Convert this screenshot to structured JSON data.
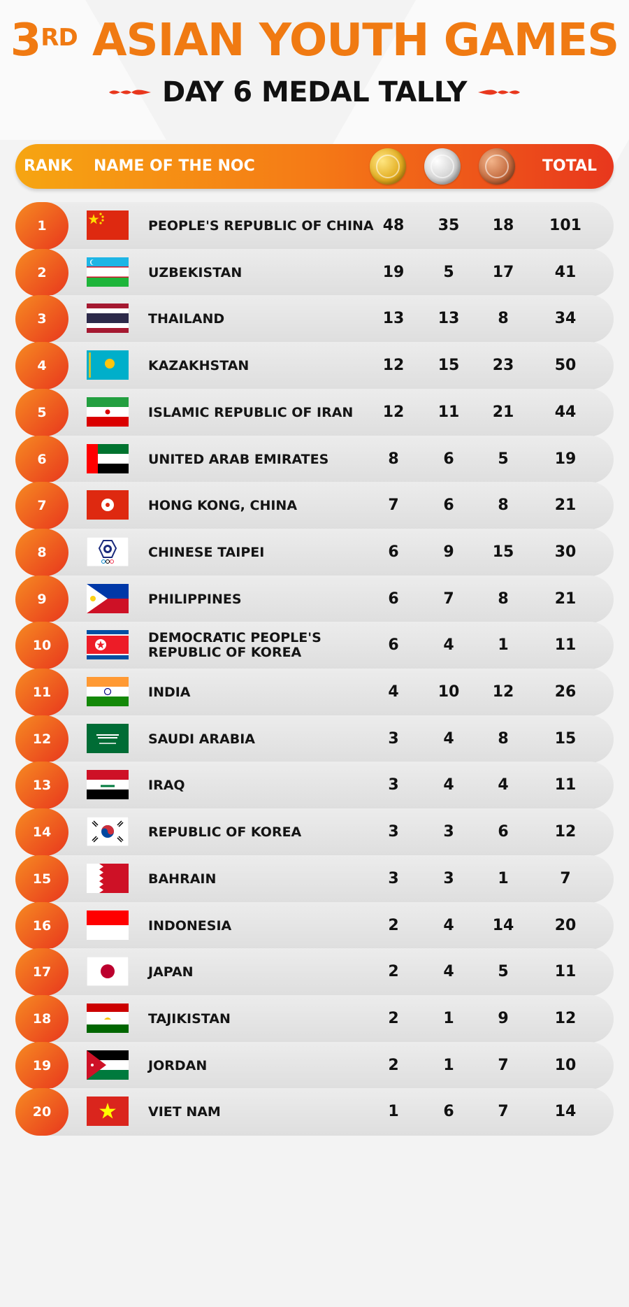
{
  "header": {
    "title_main": "ASIAN YOUTH GAMES",
    "title_ordinal": "3",
    "title_ordinal_suffix": "RD",
    "subtitle": "DAY 6 MEDAL TALLY"
  },
  "table": {
    "col_rank": "RANK",
    "col_name": "NAME OF THE NOC",
    "col_total": "TOTAL",
    "medal_icons": [
      "gold-medal-icon",
      "silver-medal-icon",
      "bronze-medal-icon"
    ],
    "colors": {
      "accent_orange": "#f57a16",
      "accent_red": "#e8371d",
      "accent_yellow": "#f6a512"
    },
    "rows": [
      {
        "rank": "1",
        "name": "PEOPLE'S REPUBLIC OF CHINA",
        "flag": "china",
        "gold": "48",
        "silver": "35",
        "bronze": "18",
        "total": "101"
      },
      {
        "rank": "2",
        "name": "UZBEKISTAN",
        "flag": "uzbekistan",
        "gold": "19",
        "silver": "5",
        "bronze": "17",
        "total": "41"
      },
      {
        "rank": "3",
        "name": "THAILAND",
        "flag": "thailand",
        "gold": "13",
        "silver": "13",
        "bronze": "8",
        "total": "34"
      },
      {
        "rank": "4",
        "name": "KAZAKHSTAN",
        "flag": "kazakhstan",
        "gold": "12",
        "silver": "15",
        "bronze": "23",
        "total": "50"
      },
      {
        "rank": "5",
        "name": "ISLAMIC REPUBLIC OF IRAN",
        "flag": "iran",
        "gold": "12",
        "silver": "11",
        "bronze": "21",
        "total": "44"
      },
      {
        "rank": "6",
        "name": "UNITED ARAB EMIRATES",
        "flag": "uae",
        "gold": "8",
        "silver": "6",
        "bronze": "5",
        "total": "19"
      },
      {
        "rank": "7",
        "name": "HONG KONG, CHINA",
        "flag": "hong-kong",
        "gold": "7",
        "silver": "6",
        "bronze": "8",
        "total": "21"
      },
      {
        "rank": "8",
        "name": "CHINESE TAIPEI",
        "flag": "chinese-taipei",
        "gold": "6",
        "silver": "9",
        "bronze": "15",
        "total": "30"
      },
      {
        "rank": "9",
        "name": "PHILIPPINES",
        "flag": "philippines",
        "gold": "6",
        "silver": "7",
        "bronze": "8",
        "total": "21"
      },
      {
        "rank": "10",
        "name": "DEMOCRATIC PEOPLE'S REPUBLIC OF KOREA",
        "flag": "dprk",
        "gold": "6",
        "silver": "4",
        "bronze": "1",
        "total": "11"
      },
      {
        "rank": "11",
        "name": "INDIA",
        "flag": "india",
        "gold": "4",
        "silver": "10",
        "bronze": "12",
        "total": "26"
      },
      {
        "rank": "12",
        "name": "SAUDI ARABIA",
        "flag": "saudi-arabia",
        "gold": "3",
        "silver": "4",
        "bronze": "8",
        "total": "15"
      },
      {
        "rank": "13",
        "name": "IRAQ",
        "flag": "iraq",
        "gold": "3",
        "silver": "4",
        "bronze": "4",
        "total": "11"
      },
      {
        "rank": "14",
        "name": "REPUBLIC OF KOREA",
        "flag": "korea",
        "gold": "3",
        "silver": "3",
        "bronze": "6",
        "total": "12"
      },
      {
        "rank": "15",
        "name": "BAHRAIN",
        "flag": "bahrain",
        "gold": "3",
        "silver": "3",
        "bronze": "1",
        "total": "7"
      },
      {
        "rank": "16",
        "name": "INDONESIA",
        "flag": "indonesia",
        "gold": "2",
        "silver": "4",
        "bronze": "14",
        "total": "20"
      },
      {
        "rank": "17",
        "name": "JAPAN",
        "flag": "japan",
        "gold": "2",
        "silver": "4",
        "bronze": "5",
        "total": "11"
      },
      {
        "rank": "18",
        "name": "TAJIKISTAN",
        "flag": "tajikistan",
        "gold": "2",
        "silver": "1",
        "bronze": "9",
        "total": "12"
      },
      {
        "rank": "19",
        "name": "JORDAN",
        "flag": "jordan",
        "gold": "2",
        "silver": "1",
        "bronze": "7",
        "total": "10"
      },
      {
        "rank": "20",
        "name": "VIET NAM",
        "flag": "vietnam",
        "gold": "1",
        "silver": "6",
        "bronze": "7",
        "total": "14"
      }
    ]
  }
}
